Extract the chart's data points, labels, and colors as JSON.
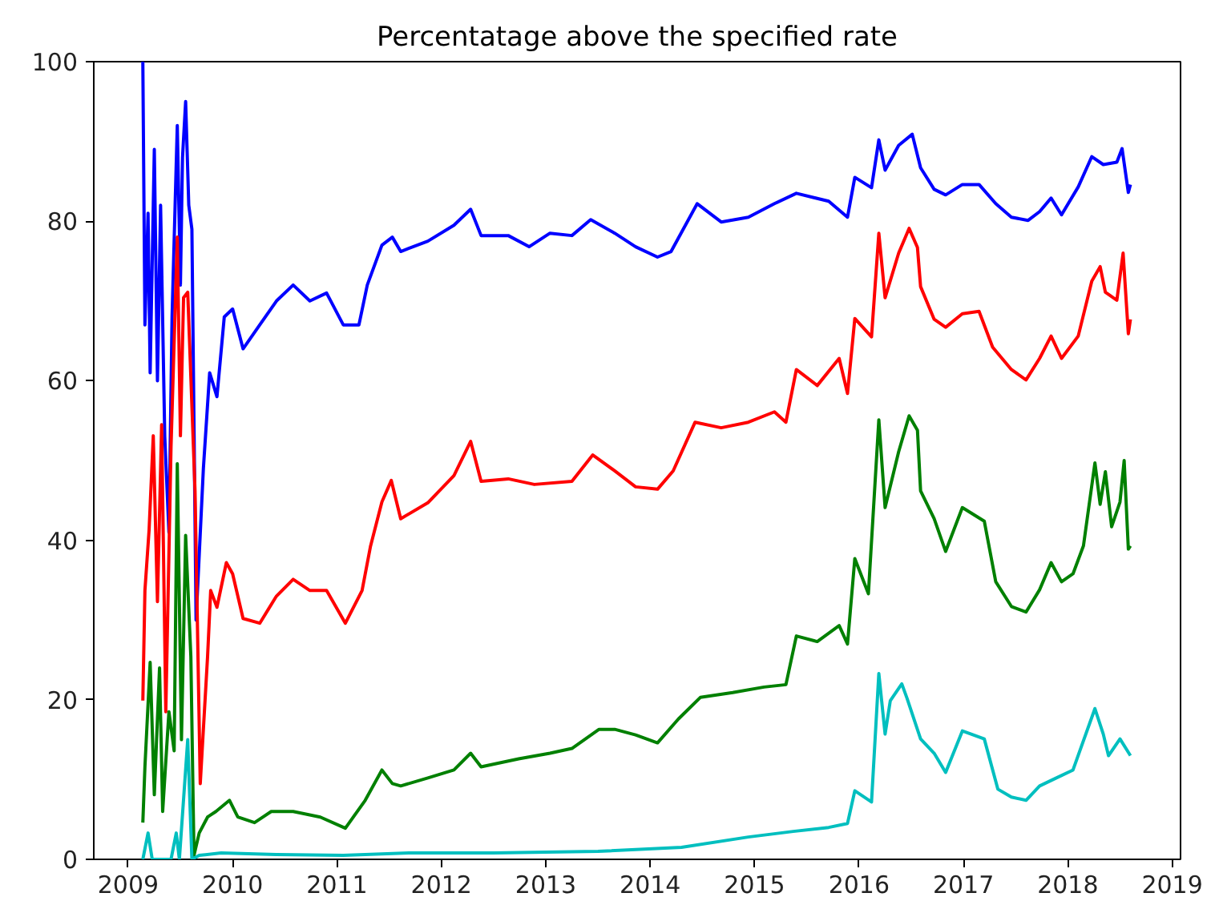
{
  "chart_data": {
    "type": "line",
    "title": "Percentatage above the specified rate",
    "xlim": [
      2008.67,
      2019.08
    ],
    "ylim": [
      0,
      100
    ],
    "xticks": [
      2009,
      2010,
      2011,
      2012,
      2013,
      2014,
      2015,
      2016,
      2017,
      2018,
      2019
    ],
    "yticks": [
      0,
      20,
      40,
      60,
      80,
      100
    ],
    "grid": false,
    "marker": "none",
    "line_style": "solid",
    "series": [
      {
        "color": "#0000ff",
        "x": [
          2009.14,
          2009.16,
          2009.19,
          2009.21,
          2009.25,
          2009.28,
          2009.31,
          2009.35,
          2009.39,
          2009.42,
          2009.47,
          2009.5,
          2009.52,
          2009.55,
          2009.58,
          2009.61,
          2009.65,
          2009.72,
          2009.78,
          2009.85,
          2009.92,
          2010.0,
          2010.1,
          2010.26,
          2010.42,
          2010.58,
          2010.74,
          2010.9,
          2011.06,
          2011.21,
          2011.29,
          2011.43,
          2011.53,
          2011.61,
          2011.87,
          2012.12,
          2012.28,
          2012.38,
          2012.64,
          2012.84,
          2013.04,
          2013.25,
          2013.43,
          2013.66,
          2013.86,
          2014.07,
          2014.2,
          2014.45,
          2014.68,
          2014.94,
          2015.19,
          2015.4,
          2015.71,
          2015.89,
          2015.96,
          2016.12,
          2016.19,
          2016.25,
          2016.38,
          2016.51,
          2016.59,
          2016.72,
          2016.83,
          2016.99,
          2017.15,
          2017.31,
          2017.46,
          2017.62,
          2017.73,
          2017.84,
          2017.94,
          2018.1,
          2018.23,
          2018.34,
          2018.47,
          2018.52,
          2018.58,
          2018.6
        ],
        "values": [
          100,
          67,
          81,
          61,
          89,
          60,
          82,
          53,
          41,
          68,
          92,
          72,
          88,
          95,
          82,
          79,
          30,
          49,
          61,
          58,
          68,
          69,
          64,
          67,
          70,
          72,
          70,
          71,
          67,
          67,
          72,
          77,
          78,
          76.2,
          77.5,
          79.5,
          81.5,
          78.2,
          78.2,
          76.8,
          78.5,
          78.2,
          80.2,
          78.5,
          76.8,
          75.5,
          76.2,
          82.2,
          79.9,
          80.5,
          82.2,
          83.5,
          82.5,
          80.5,
          85.5,
          84.2,
          90.2,
          86.4,
          89.5,
          90.9,
          86.7,
          84,
          83.3,
          84.6,
          84.6,
          82.2,
          80.5,
          80.1,
          81.2,
          82.9,
          80.8,
          84.3,
          88.1,
          87.1,
          87.4,
          89.1,
          83.6,
          84.6
        ]
      },
      {
        "color": "#ff0000",
        "x": [
          2009.14,
          2009.16,
          2009.2,
          2009.24,
          2009.28,
          2009.32,
          2009.36,
          2009.41,
          2009.47,
          2009.5,
          2009.53,
          2009.57,
          2009.64,
          2009.69,
          2009.76,
          2009.79,
          2009.85,
          2009.94,
          2010.0,
          2010.1,
          2010.26,
          2010.42,
          2010.58,
          2010.74,
          2010.9,
          2011.08,
          2011.24,
          2011.32,
          2011.43,
          2011.52,
          2011.61,
          2011.87,
          2012.12,
          2012.28,
          2012.38,
          2012.64,
          2012.89,
          2013.25,
          2013.45,
          2013.66,
          2013.86,
          2014.07,
          2014.22,
          2014.43,
          2014.68,
          2014.94,
          2015.19,
          2015.3,
          2015.4,
          2015.6,
          2015.81,
          2015.89,
          2015.96,
          2016.12,
          2016.19,
          2016.25,
          2016.38,
          2016.48,
          2016.56,
          2016.59,
          2016.72,
          2016.83,
          2016.99,
          2017.15,
          2017.28,
          2017.46,
          2017.6,
          2017.73,
          2017.84,
          2017.94,
          2018.1,
          2018.23,
          2018.31,
          2018.36,
          2018.47,
          2018.53,
          2018.58,
          2018.6
        ],
        "values": [
          19.9,
          33.7,
          41.3,
          53.1,
          32.3,
          54.5,
          18.5,
          51.7,
          78,
          53.1,
          70.4,
          71.1,
          46.2,
          9.5,
          25.4,
          33.7,
          31.6,
          37.2,
          35.8,
          30.2,
          29.6,
          33,
          35.1,
          33.7,
          33.7,
          29.6,
          33.7,
          39.2,
          44.8,
          47.5,
          42.7,
          44.7,
          48.1,
          52.4,
          47.4,
          47.7,
          47,
          47.4,
          50.7,
          48.7,
          46.7,
          46.4,
          48.7,
          54.8,
          54.1,
          54.8,
          56.1,
          54.8,
          61.4,
          59.4,
          62.8,
          58.4,
          67.8,
          65.5,
          78.5,
          70.4,
          76,
          79.1,
          76.7,
          71.8,
          67.7,
          66.7,
          68.4,
          68.7,
          64.2,
          61.4,
          60.1,
          62.8,
          65.6,
          62.8,
          65.6,
          72.5,
          74.3,
          71.1,
          70.1,
          76,
          65.9,
          67.7
        ]
      },
      {
        "color": "#008000",
        "x": [
          2009.14,
          2009.16,
          2009.21,
          2009.25,
          2009.3,
          2009.33,
          2009.39,
          2009.44,
          2009.47,
          2009.51,
          2009.55,
          2009.6,
          2009.63,
          2009.68,
          2009.76,
          2009.84,
          2009.97,
          2010.05,
          2010.21,
          2010.37,
          2010.58,
          2010.84,
          2011.08,
          2011.27,
          2011.43,
          2011.53,
          2011.61,
          2011.87,
          2012.12,
          2012.28,
          2012.38,
          2012.74,
          2013.04,
          2013.25,
          2013.51,
          2013.66,
          2013.86,
          2014.07,
          2014.27,
          2014.48,
          2014.79,
          2015.09,
          2015.3,
          2015.4,
          2015.6,
          2015.81,
          2015.89,
          2015.96,
          2016.09,
          2016.19,
          2016.25,
          2016.38,
          2016.48,
          2016.56,
          2016.59,
          2016.72,
          2016.83,
          2016.99,
          2017.2,
          2017.31,
          2017.46,
          2017.6,
          2017.73,
          2017.84,
          2017.94,
          2018.05,
          2018.15,
          2018.26,
          2018.31,
          2018.36,
          2018.42,
          2018.5,
          2018.54,
          2018.58,
          2018.6
        ],
        "values": [
          4.6,
          11.6,
          24.7,
          8.1,
          24,
          6,
          18.5,
          13.6,
          49.6,
          15,
          40.6,
          25.4,
          0.5,
          3.3,
          5.3,
          6,
          7.4,
          5.3,
          4.6,
          6,
          6,
          5.3,
          3.9,
          7.4,
          11.2,
          9.5,
          9.2,
          10.2,
          11.2,
          13.3,
          11.6,
          12.6,
          13.3,
          13.9,
          16.3,
          16.3,
          15.6,
          14.6,
          17.6,
          20.3,
          20.9,
          21.6,
          21.9,
          28,
          27.3,
          29.3,
          27,
          37.7,
          33.3,
          55.1,
          44.1,
          51.1,
          55.6,
          53.8,
          46.2,
          42.7,
          38.6,
          44.1,
          42.4,
          34.8,
          31.7,
          31,
          33.8,
          37.2,
          34.8,
          35.8,
          39.3,
          49.7,
          44.5,
          48.6,
          41.7,
          44.8,
          50,
          38.9,
          39.3
        ]
      },
      {
        "color": "#00bfbf",
        "x": [
          2009.14,
          2009.19,
          2009.23,
          2009.41,
          2009.46,
          2009.49,
          2009.57,
          2009.61,
          2009.68,
          2009.89,
          2010.42,
          2011.06,
          2011.69,
          2012.5,
          2013.5,
          2014.3,
          2014.94,
          2015.37,
          2015.71,
          2015.89,
          2015.96,
          2016.12,
          2016.19,
          2016.25,
          2016.3,
          2016.41,
          2016.46,
          2016.59,
          2016.72,
          2016.83,
          2016.99,
          2017.2,
          2017.33,
          2017.46,
          2017.6,
          2017.73,
          2017.89,
          2018.05,
          2018.26,
          2018.34,
          2018.39,
          2018.5,
          2018.6
        ],
        "values": [
          0,
          3.3,
          0,
          0,
          3.3,
          0,
          15,
          0,
          0.5,
          0.8,
          0.6,
          0.5,
          0.8,
          0.8,
          1,
          1.5,
          2.8,
          3.5,
          4,
          4.5,
          8.6,
          7.2,
          23.3,
          15.7,
          19.9,
          22,
          20.2,
          15.1,
          13.3,
          10.9,
          16.1,
          15.1,
          8.8,
          7.8,
          7.4,
          9.2,
          10.2,
          11.2,
          18.9,
          15.7,
          13,
          15.1,
          13
        ]
      }
    ]
  }
}
